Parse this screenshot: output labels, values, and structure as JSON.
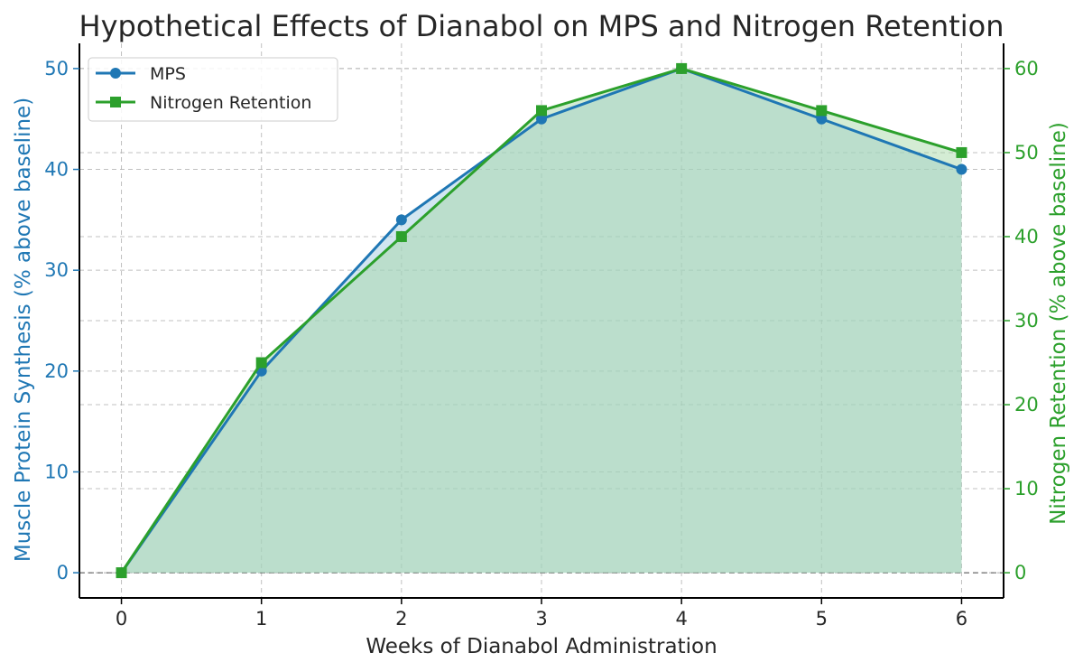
{
  "chart_data": {
    "type": "line",
    "title": "Hypothetical Effects of Dianabol on MPS and Nitrogen Retention",
    "xlabel": "Weeks of Dianabol Administration",
    "ylabel_left": "Muscle Protein Synthesis (% above baseline)",
    "ylabel_right": "Nitrogen Retention (% above baseline)",
    "x": [
      0,
      1,
      2,
      3,
      4,
      5,
      6
    ],
    "x_ticks": [
      "0",
      "1",
      "2",
      "3",
      "4",
      "5",
      "6"
    ],
    "y_left_ticks": [
      "0",
      "10",
      "20",
      "30",
      "40",
      "50"
    ],
    "y_right_ticks": [
      "0",
      "10",
      "20",
      "30",
      "40",
      "50",
      "60"
    ],
    "xlim": [
      -0.3,
      6.3
    ],
    "ylim_left": [
      -2.5,
      52.5
    ],
    "ylim_right": [
      -3,
      63
    ],
    "grid": true,
    "legend_position": "top-left",
    "series": [
      {
        "name": "MPS",
        "axis": "left",
        "marker": "circle",
        "color": "#1f77b4",
        "values": [
          0,
          20,
          35,
          45,
          50,
          45,
          40
        ]
      },
      {
        "name": "Nitrogen Retention",
        "axis": "right",
        "marker": "square",
        "color": "#2ca02c",
        "values": [
          0,
          25,
          40,
          55,
          60,
          55,
          50
        ]
      }
    ],
    "colors": {
      "left_axis": "#1f77b4",
      "right_axis": "#2ca02c",
      "mps_fill": "#a6cde3",
      "nr_fill": "#9fd49f"
    }
  }
}
